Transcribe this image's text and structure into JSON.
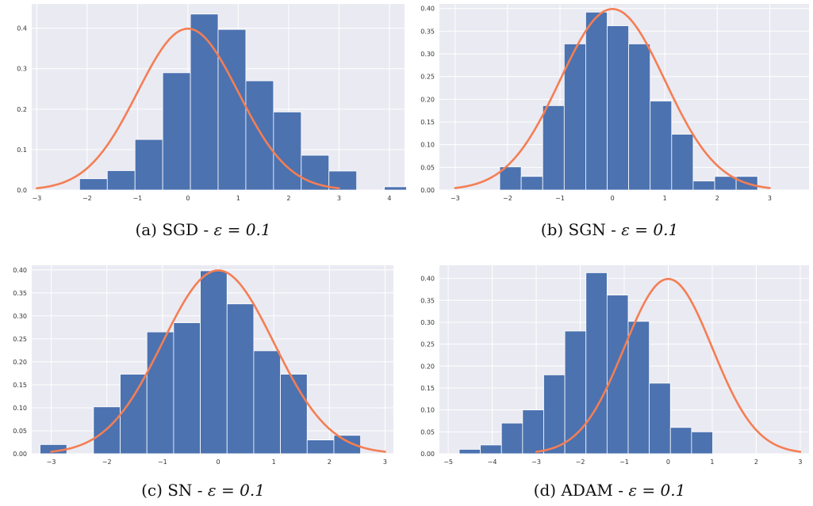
{
  "colors": {
    "bar": "#4c72b0",
    "curve": "#f47e54",
    "plot_bg": "#eaeaf2",
    "grid": "#ffffff"
  },
  "chart_data": [
    {
      "id": "a",
      "type": "bar",
      "caption": {
        "prefix": "(a) SGD - ",
        "math": "ε = 0.1"
      },
      "xlim": [
        -3.1,
        4.3
      ],
      "ylim": [
        0,
        0.46
      ],
      "xticks": [
        -3,
        -2,
        -1,
        0,
        1,
        2,
        3,
        4
      ],
      "xtick_labels": [
        "−3",
        "−2",
        "−1",
        "0",
        "1",
        "2",
        "3",
        "4"
      ],
      "yticks": [
        0,
        0.1,
        0.2,
        0.3,
        0.4
      ],
      "ytick_labels": [
        "0.0",
        "0.1",
        "0.2",
        "0.3",
        "0.4"
      ],
      "bin_edges": [
        -2.15,
        -1.6,
        -1.05,
        -0.5,
        0.05,
        0.6,
        1.15,
        1.7,
        2.25,
        2.8,
        3.35,
        3.9,
        4.45
      ],
      "bin_heights": [
        0.028,
        0.048,
        0.125,
        0.29,
        0.435,
        0.397,
        0.27,
        0.193,
        0.086,
        0.047,
        0,
        0.008
      ],
      "normal_pdf": {
        "mean": 0,
        "std": 1,
        "x_range": [
          -3,
          3
        ]
      }
    },
    {
      "id": "b",
      "type": "bar",
      "caption": {
        "prefix": "(b) SGN - ",
        "math": "ε = 0.1"
      },
      "xlim": [
        -3.3,
        3.75
      ],
      "ylim": [
        0,
        0.41
      ],
      "xticks": [
        -3,
        -2,
        -1,
        0,
        1,
        2,
        3
      ],
      "xtick_labels": [
        "−3",
        "−2",
        "−1",
        "0",
        "1",
        "2",
        "3"
      ],
      "yticks": [
        0,
        0.05,
        0.1,
        0.15,
        0.2,
        0.25,
        0.3,
        0.35,
        0.4
      ],
      "ytick_labels": [
        "0.00",
        "0.05",
        "0.10",
        "0.15",
        "0.20",
        "0.25",
        "0.30",
        "0.35",
        "0.40"
      ],
      "bin_edges": [
        -2.15,
        -1.74,
        -1.33,
        -0.92,
        -0.51,
        -0.1,
        0.31,
        0.72,
        1.13,
        1.54,
        1.95,
        2.36,
        2.77,
        3.18,
        3.59
      ],
      "bin_heights": [
        0.051,
        0.03,
        0.186,
        0.322,
        0.392,
        0.362,
        0.322,
        0.196,
        0.123,
        0.02,
        0.03,
        0.03,
        0
      ],
      "normal_pdf": {
        "mean": 0,
        "std": 1,
        "x_range": [
          -3,
          3
        ]
      }
    },
    {
      "id": "c",
      "type": "bar",
      "caption": {
        "prefix": "(c) SN - ",
        "math": "ε = 0.1"
      },
      "xlim": [
        -3.35,
        3.15
      ],
      "ylim": [
        0,
        0.41
      ],
      "xticks": [
        -3,
        -2,
        -1,
        0,
        1,
        2,
        3
      ],
      "xtick_labels": [
        "−3",
        "−2",
        "−1",
        "0",
        "1",
        "2",
        "3"
      ],
      "yticks": [
        0,
        0.05,
        0.1,
        0.15,
        0.2,
        0.25,
        0.3,
        0.35,
        0.4
      ],
      "ytick_labels": [
        "0.00",
        "0.05",
        "0.10",
        "0.15",
        "0.20",
        "0.25",
        "0.30",
        "0.35",
        "0.40"
      ],
      "bin_edges": [
        -3.2,
        -2.72,
        -2.24,
        -1.76,
        -1.28,
        -0.8,
        -0.32,
        0.16,
        0.64,
        1.12,
        1.6,
        2.08,
        2.56
      ],
      "bin_heights": [
        0.02,
        0,
        0.102,
        0.173,
        0.265,
        0.285,
        0.398,
        0.326,
        0.224,
        0.173,
        0.03,
        0.04
      ],
      "normal_pdf": {
        "mean": 0,
        "std": 1,
        "x_range": [
          -3,
          3
        ]
      }
    },
    {
      "id": "d",
      "type": "bar",
      "caption": {
        "prefix": "(d) ADAM - ",
        "math": "ε = 0.1"
      },
      "xlim": [
        -5.2,
        3.2
      ],
      "ylim": [
        0,
        0.43
      ],
      "xticks": [
        -5,
        -4,
        -3,
        -2,
        -1,
        0,
        1,
        2,
        3
      ],
      "xtick_labels": [
        "−5",
        "−4",
        "−3",
        "−2",
        "−1",
        "0",
        "1",
        "2",
        "3"
      ],
      "yticks": [
        0,
        0.05,
        0.1,
        0.15,
        0.2,
        0.25,
        0.3,
        0.35,
        0.4
      ],
      "ytick_labels": [
        "0.00",
        "0.05",
        "0.10",
        "0.15",
        "0.20",
        "0.25",
        "0.30",
        "0.35",
        "0.40"
      ],
      "bin_edges": [
        -4.75,
        -4.27,
        -3.79,
        -3.31,
        -2.83,
        -2.35,
        -1.87,
        -1.39,
        -0.91,
        -0.43,
        0.05,
        0.53,
        1.01
      ],
      "bin_heights": [
        0.01,
        0.02,
        0.07,
        0.1,
        0.18,
        0.28,
        0.413,
        0.362,
        0.302,
        0.161,
        0.06,
        0.05
      ],
      "normal_pdf": {
        "mean": 0,
        "std": 1,
        "x_range": [
          -3,
          3
        ]
      }
    }
  ]
}
